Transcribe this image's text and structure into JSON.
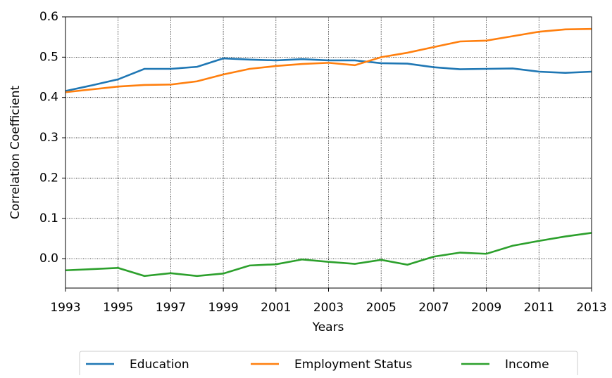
{
  "chart_data": {
    "type": "line",
    "xlabel": "Years",
    "ylabel": "Correlation Coefficient",
    "x": [
      1993,
      1994,
      1995,
      1996,
      1997,
      1998,
      1999,
      2000,
      2001,
      2002,
      2003,
      2004,
      2005,
      2006,
      2007,
      2008,
      2009,
      2010,
      2011,
      2012,
      2013
    ],
    "series": [
      {
        "name": "Education",
        "color": "#1f77b4",
        "values": [
          0.416,
          0.43,
          0.445,
          0.471,
          0.471,
          0.476,
          0.497,
          0.494,
          0.492,
          0.495,
          0.492,
          0.492,
          0.485,
          0.484,
          0.475,
          0.47,
          0.471,
          0.472,
          0.464,
          0.461,
          0.464
        ]
      },
      {
        "name": "Employment Status",
        "color": "#ff7f0e",
        "values": [
          0.413,
          0.42,
          0.427,
          0.431,
          0.432,
          0.44,
          0.457,
          0.471,
          0.478,
          0.483,
          0.486,
          0.48,
          0.5,
          0.511,
          0.525,
          0.539,
          0.541,
          0.552,
          0.563,
          0.569,
          0.57
        ]
      },
      {
        "name": "Income",
        "color": "#2ca02c",
        "values": [
          -0.029,
          -0.026,
          -0.023,
          -0.043,
          -0.036,
          -0.043,
          -0.037,
          -0.017,
          -0.014,
          -0.002,
          -0.008,
          -0.013,
          -0.003,
          -0.015,
          0.005,
          0.015,
          0.012,
          0.032,
          0.044,
          0.055,
          0.064
        ]
      }
    ],
    "xlim": [
      1993,
      2013
    ],
    "xticks": [
      1993,
      1995,
      1997,
      1999,
      2001,
      2003,
      2005,
      2007,
      2009,
      2011,
      2013
    ],
    "ylim": [
      -0.073,
      0.6
    ],
    "yticks": [
      {
        "value": 0,
        "label": "0.0"
      },
      0.1,
      0.2,
      0.3,
      0.4,
      0.5,
      0.6
    ],
    "grid": true,
    "legend": "bottom"
  }
}
